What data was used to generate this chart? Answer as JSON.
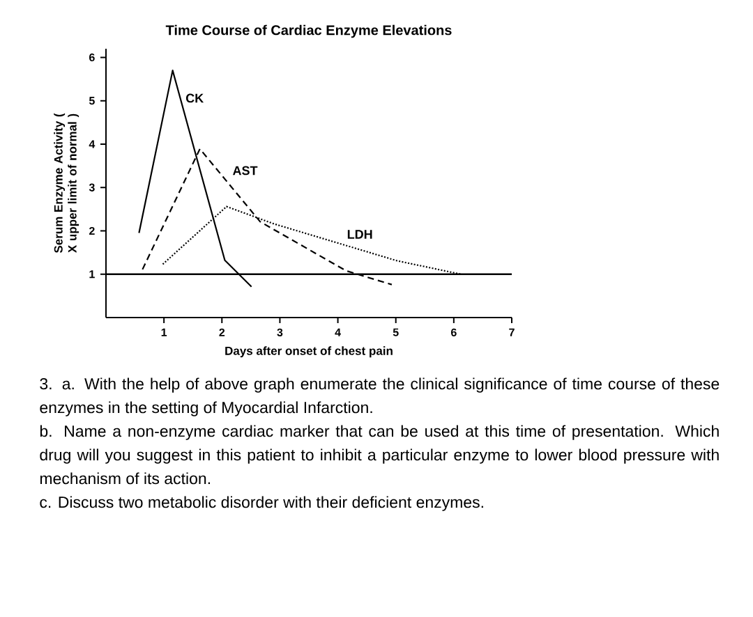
{
  "chart_data": {
    "type": "line",
    "title": "Time Course of Cardiac Enzyme Elevations",
    "xlabel": "Days after onset of chest pain",
    "ylabel": "Serum Enzyme Activity ( X upper limit of normal )",
    "xlim": [
      0,
      7
    ],
    "xticks": [
      1,
      2,
      3,
      4,
      5,
      6,
      7
    ],
    "ylim": [
      0,
      6.2
    ],
    "yticks": [
      1,
      2,
      3,
      4,
      5,
      6
    ],
    "marker": "none",
    "legend": false,
    "ref_lines": [
      {
        "axis": "y",
        "value": 1,
        "color": "#000000"
      }
    ],
    "series": [
      {
        "name": "CK",
        "color": "#000000",
        "line_style": "solid",
        "x": [
          0.57,
          1.15,
          2.05,
          2.51
        ],
        "values": [
          1.95,
          5.7,
          1.32,
          0.71
        ]
      },
      {
        "name": "AST",
        "color": "#000000",
        "line_style": "dashed",
        "x": [
          0.63,
          1.62,
          2.66,
          4.14,
          4.93
        ],
        "values": [
          1.11,
          3.89,
          2.21,
          1.08,
          0.76
        ]
      },
      {
        "name": "LDH",
        "color": "#000000",
        "line_style": "dotted",
        "x": [
          0.98,
          2.08,
          2.9,
          5.02,
          6.12
        ],
        "values": [
          1.23,
          2.56,
          2.16,
          1.31,
          1.0
        ]
      }
    ],
    "annotations": [
      "3. a. With the help of above graph enumerate the clinical significance of time course of these enzymes in the setting of Myocardial Infarction.",
      "b. Name a non-enzyme cardiac marker that can be used at this time of presentation. Which drug will you suggest in this patient to inhibit a particular enzyme to lower blood pressure with mechanism of its action.",
      "c. Discuss two metabolic disorder with their deficient enzymes."
    ]
  }
}
